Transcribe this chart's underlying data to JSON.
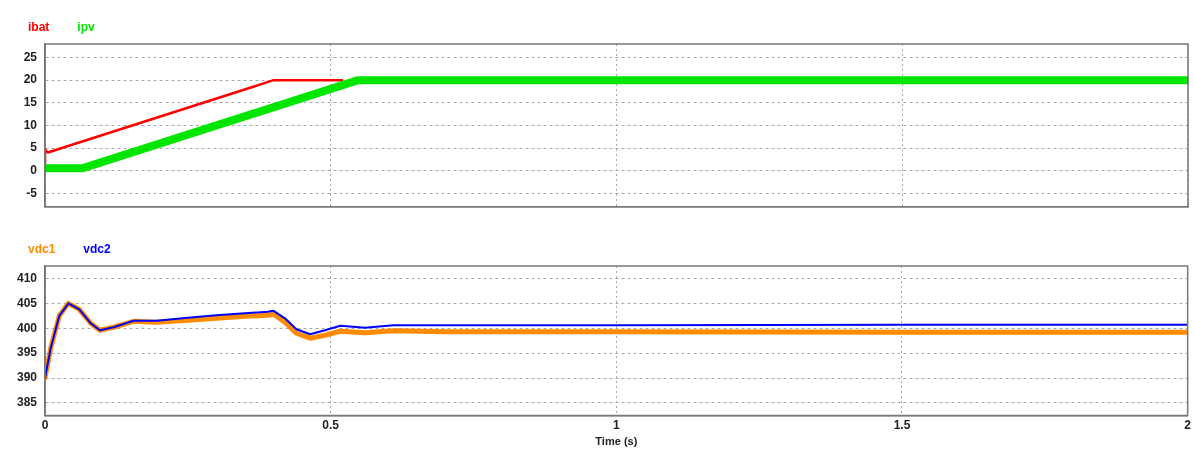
{
  "chart_data": [
    {
      "type": "line",
      "legend": "top left",
      "grid": true,
      "tick_labels": "y",
      "line_style": "solid",
      "marker": "none",
      "xlim": [
        0,
        2
      ],
      "xticks": [
        0,
        0.5,
        1,
        1.5,
        2
      ],
      "ylim": [
        -8,
        28
      ],
      "yticks": [
        -5,
        0,
        5,
        10,
        15,
        20,
        25
      ],
      "series": [
        {
          "name": "ibat",
          "color": "#ff0000",
          "x": [
            0,
            0,
            0.005,
            0.4,
            0.52
          ],
          "values": [
            0,
            4.7,
            4,
            20,
            20
          ]
        },
        {
          "name": "ipv",
          "color": "#00e600",
          "x": [
            0,
            0.065,
            0.548,
            2
          ],
          "values": [
            0.5,
            0.5,
            20,
            20
          ]
        }
      ]
    },
    {
      "type": "line",
      "legend": "top left",
      "grid": true,
      "xlabel": "Time (s)",
      "line_style": "solid",
      "marker": "none",
      "xlim": [
        0,
        2
      ],
      "xticks": [
        0,
        0.5,
        1,
        1.5,
        2
      ],
      "ylim": [
        382.5,
        412.5
      ],
      "yticks": [
        385,
        390,
        395,
        400,
        405,
        410
      ],
      "series": [
        {
          "name": "vdc1",
          "color": "#ff8c00",
          "x": [
            0,
            0.01,
            0.025,
            0.041,
            0.06,
            0.08,
            0.096,
            0.12,
            0.155,
            0.195,
            0.25,
            0.3,
            0.35,
            0.39,
            0.4,
            0.42,
            0.44,
            0.464,
            0.49,
            0.517,
            0.56,
            0.61,
            0.7,
            1,
            1.5,
            2
          ],
          "values": [
            390,
            396,
            402.5,
            405,
            403.8,
            401,
            399.6,
            400.2,
            401.4,
            401.2,
            401.6,
            402,
            402.4,
            402.6,
            402.8,
            401.2,
            399,
            398,
            398.6,
            399.4,
            399.1,
            399.5,
            399.3,
            399.3,
            399.2,
            399.2
          ]
        },
        {
          "name": "vdc2",
          "color": "#0000ff",
          "x": [
            0,
            0.01,
            0.025,
            0.041,
            0.06,
            0.08,
            0.096,
            0.12,
            0.155,
            0.195,
            0.25,
            0.3,
            0.35,
            0.39,
            0.4,
            0.42,
            0.44,
            0.464,
            0.49,
            0.517,
            0.56,
            0.61,
            0.7,
            1,
            1.5,
            2
          ],
          "values": [
            390,
            396,
            402.5,
            405,
            403.8,
            401,
            399.6,
            400.2,
            401.5,
            401.5,
            402.1,
            402.6,
            403,
            403.3,
            403.5,
            402,
            399.8,
            398.8,
            399.6,
            400.5,
            400.1,
            400.6,
            400.6,
            400.6,
            400.7,
            400.7
          ]
        }
      ]
    }
  ]
}
